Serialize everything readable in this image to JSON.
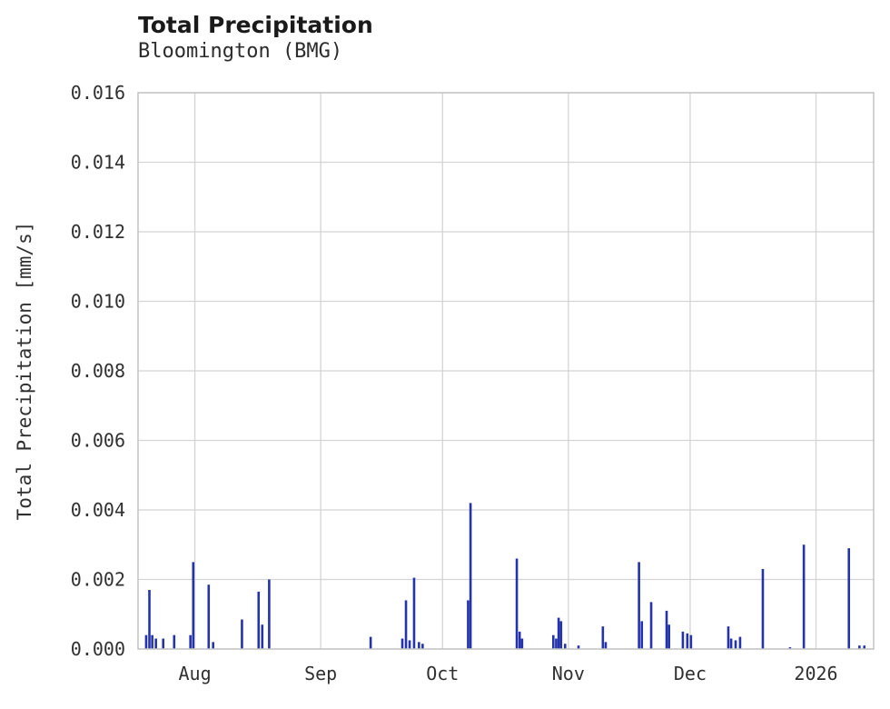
{
  "figure": {
    "title": "Total Precipitation",
    "subtitle": "Bloomington (BMG)"
  },
  "chart_data": {
    "type": "bar",
    "title": "Total Precipitation",
    "subtitle": "Bloomington (BMG)",
    "xlabel": "",
    "ylabel": "Total Precipitation [mm/s]",
    "ylim": [
      0,
      0.016
    ],
    "ytick_step": 0.002,
    "ytick_decimals": 3,
    "grid": true,
    "legend": "none",
    "x_axis_units": "days from 2025-07-18",
    "x_range": [
      0,
      181.2
    ],
    "x_ticks": [
      {
        "t": 14,
        "label": "Aug"
      },
      {
        "t": 45,
        "label": "Sep"
      },
      {
        "t": 75,
        "label": "Oct"
      },
      {
        "t": 106,
        "label": "Nov"
      },
      {
        "t": 136,
        "label": "Dec"
      },
      {
        "t": 167,
        "label": "2026"
      }
    ],
    "bar_color": "#2433aa",
    "grid_color": "#d4d4d4",
    "spine_color": "#c4c4c4",
    "points": [
      {
        "t": 2.0,
        "v": 0.0004
      },
      {
        "t": 2.8,
        "v": 0.0017
      },
      {
        "t": 3.5,
        "v": 0.0004
      },
      {
        "t": 4.4,
        "v": 0.0003
      },
      {
        "t": 6.2,
        "v": 0.0003
      },
      {
        "t": 8.9,
        "v": 0.0004
      },
      {
        "t": 12.9,
        "v": 0.0004
      },
      {
        "t": 13.6,
        "v": 0.0025
      },
      {
        "t": 17.4,
        "v": 0.00185
      },
      {
        "t": 18.5,
        "v": 0.0002
      },
      {
        "t": 25.6,
        "v": 0.00085
      },
      {
        "t": 29.7,
        "v": 0.00165
      },
      {
        "t": 30.6,
        "v": 0.0007
      },
      {
        "t": 32.3,
        "v": 0.002
      },
      {
        "t": 57.3,
        "v": 0.00035
      },
      {
        "t": 65.1,
        "v": 0.0003
      },
      {
        "t": 66.0,
        "v": 0.0014
      },
      {
        "t": 66.9,
        "v": 0.00025
      },
      {
        "t": 68.0,
        "v": 0.00205
      },
      {
        "t": 69.2,
        "v": 0.0002
      },
      {
        "t": 70.1,
        "v": 0.00015
      },
      {
        "t": 81.3,
        "v": 0.0014
      },
      {
        "t": 81.9,
        "v": 0.0042
      },
      {
        "t": 93.3,
        "v": 0.0026
      },
      {
        "t": 94.0,
        "v": 0.0005
      },
      {
        "t": 94.6,
        "v": 0.0003
      },
      {
        "t": 102.3,
        "v": 0.0004
      },
      {
        "t": 103.0,
        "v": 0.0003
      },
      {
        "t": 103.6,
        "v": 0.0009
      },
      {
        "t": 104.2,
        "v": 0.0008
      },
      {
        "t": 105.2,
        "v": 0.00015
      },
      {
        "t": 108.5,
        "v": 0.0001
      },
      {
        "t": 114.5,
        "v": 0.00065
      },
      {
        "t": 115.2,
        "v": 0.0002
      },
      {
        "t": 123.4,
        "v": 0.0025
      },
      {
        "t": 124.1,
        "v": 0.0008
      },
      {
        "t": 126.4,
        "v": 0.00135
      },
      {
        "t": 130.2,
        "v": 0.0011
      },
      {
        "t": 130.8,
        "v": 0.0007
      },
      {
        "t": 134.2,
        "v": 0.0005
      },
      {
        "t": 135.3,
        "v": 0.00045
      },
      {
        "t": 136.2,
        "v": 0.0004
      },
      {
        "t": 145.4,
        "v": 0.00065
      },
      {
        "t": 146.1,
        "v": 0.0003
      },
      {
        "t": 147.2,
        "v": 0.00025
      },
      {
        "t": 148.3,
        "v": 0.00035
      },
      {
        "t": 153.9,
        "v": 0.0023
      },
      {
        "t": 160.6,
        "v": 5e-05
      },
      {
        "t": 164.0,
        "v": 0.003
      },
      {
        "t": 175.1,
        "v": 0.0029
      },
      {
        "t": 177.7,
        "v": 0.0001
      },
      {
        "t": 178.9,
        "v": 0.0001
      }
    ]
  }
}
